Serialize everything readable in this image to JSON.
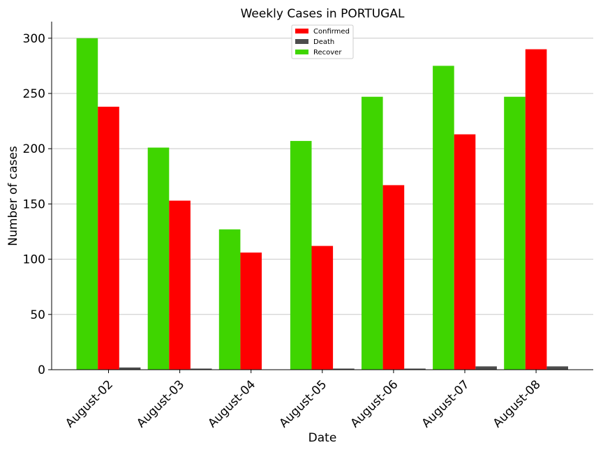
{
  "chart_data": {
    "type": "bar",
    "title": "Weekly Cases in PORTUGAL",
    "xlabel": "Date",
    "ylabel": "Number of cases",
    "ylim": [
      0,
      315
    ],
    "yticks": [
      0,
      50,
      100,
      150,
      200,
      250,
      300
    ],
    "grid": "horizontal",
    "legend_position": "top-center",
    "categories": [
      "August-02",
      "August-03",
      "August-04",
      "August-05",
      "August-06",
      "August-07",
      "August-08"
    ],
    "series": [
      {
        "name": "Recover",
        "color": "#3fd500",
        "values": [
          300,
          201,
          127,
          207,
          247,
          275,
          247
        ]
      },
      {
        "name": "Confirmed",
        "color": "#ff0000",
        "values": [
          238,
          153,
          106,
          112,
          167,
          213,
          290
        ]
      },
      {
        "name": "Death",
        "color": "#4d4d4d",
        "values": [
          2,
          1,
          0,
          1,
          1,
          3,
          3
        ]
      }
    ],
    "legend_order": [
      "Confirmed",
      "Death",
      "Recover"
    ]
  }
}
